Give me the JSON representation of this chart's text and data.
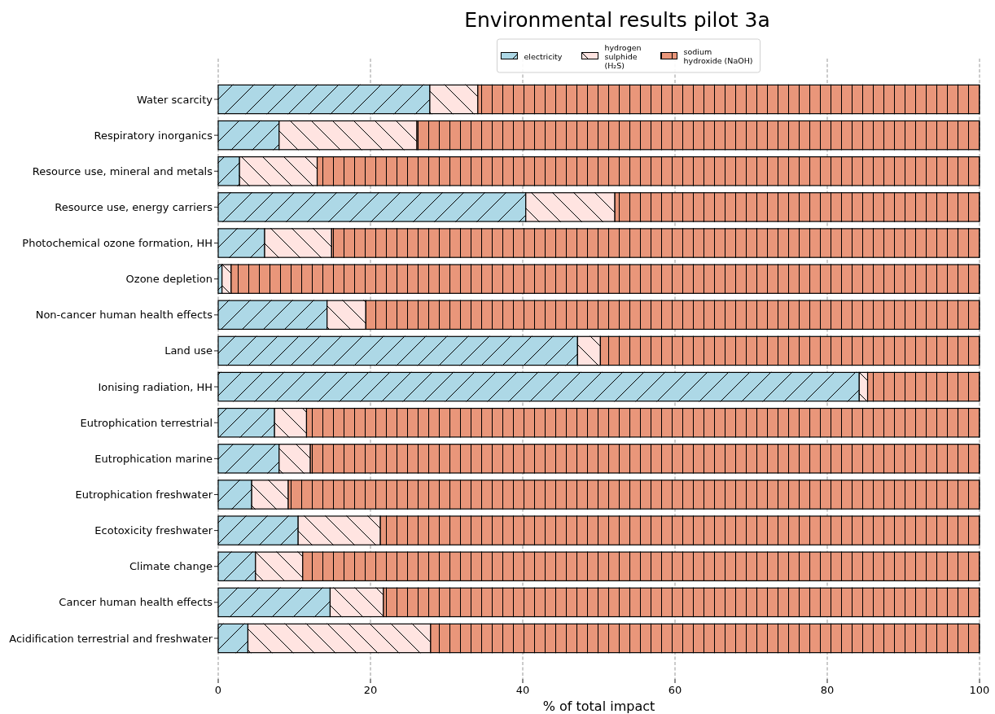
{
  "chart_data": {
    "type": "bar",
    "orientation": "horizontal",
    "stacked": true,
    "title": "Environmental results pilot 3a",
    "xlabel": "% of total impact",
    "categories": [
      "Water scarcity",
      "Respiratory inorganics",
      "Resource use, mineral and metals",
      "Resource use, energy carriers",
      "Photochemical ozone formation, HH",
      "Ozone depletion",
      "Non-cancer human health effects",
      "Land use",
      "Ionising radiation, HH",
      "Eutrophication terrestrial",
      "Eutrophication marine",
      "Eutrophication freshwater",
      "Ecotoxicity freshwater",
      "Climate change",
      "Cancer human health effects",
      "Acidification terrestrial and freshwater"
    ],
    "series": [
      {
        "name": "electricity",
        "color": "#add8e6",
        "values": [
          27.8,
          8.0,
          2.8,
          40.4,
          6.1,
          0.5,
          14.3,
          47.2,
          84.2,
          7.4,
          8.0,
          4.4,
          10.5,
          4.9,
          14.7,
          3.9
        ]
      },
      {
        "name": "hydrogen\nsulphide\n(H₂S)",
        "color": "#ffe4e1",
        "values": [
          6.3,
          18.1,
          10.2,
          11.7,
          8.8,
          1.2,
          5.1,
          3.0,
          1.1,
          4.2,
          4.1,
          4.8,
          10.8,
          6.2,
          7.0,
          24.0
        ]
      },
      {
        "name": "sodium\nhydroxide (NaOH)",
        "color": "#e9967a",
        "values": [
          65.9,
          73.9,
          87.0,
          47.9,
          85.1,
          98.3,
          80.6,
          49.8,
          14.7,
          88.4,
          87.9,
          90.8,
          78.7,
          88.9,
          78.3,
          72.1
        ]
      }
    ],
    "xlim": [
      0,
      100
    ],
    "xticks": [
      0,
      20,
      40,
      60,
      80,
      100
    ],
    "grid": "x",
    "legend": "top"
  }
}
